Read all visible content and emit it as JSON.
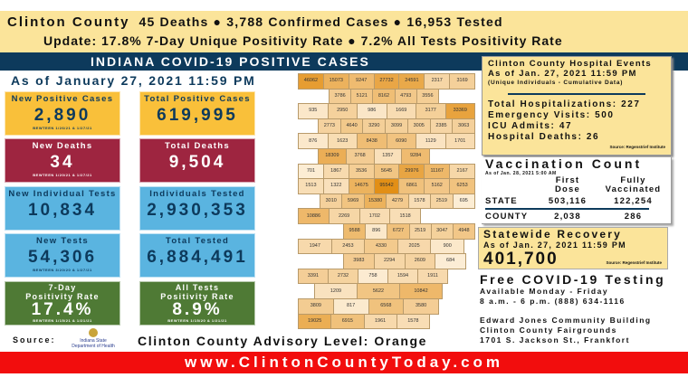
{
  "banner": {
    "county": "Clinton County",
    "line1": "45 Deaths  ● 3,788 Confirmed Cases    ● 16,953 Tested",
    "line2": "Update: 17.8% 7-Day Unique Positivity Rate ● 7.2% All Tests Positivity Rate"
  },
  "title": "INDIANA COVID-19 POSITIVE CASES",
  "as_of": "As of January 27, 2021 11:59 PM",
  "tiles": [
    {
      "title": "New Positive Cases",
      "value": "2,890",
      "sub": "BEWTEEN 1/26/21 & 1/27/21"
    },
    {
      "title": "Total Positive Cases",
      "value": "619,995"
    },
    {
      "title": "New Deaths",
      "value": "34",
      "sub": "BEWTEEN 1/20/21 & 1/27/21"
    },
    {
      "title": "Total Deaths",
      "value": "9,504"
    },
    {
      "title": "New Individual Tests",
      "value": "10,834"
    },
    {
      "title": "Individuals Tested",
      "value": "2,930,353"
    },
    {
      "title": "New Tests",
      "value": "54,306",
      "sub": "BEWTEEN 3/20/20 & 1/27/21"
    },
    {
      "title": "Total Tested",
      "value": "6,884,491"
    },
    {
      "title1": "7-Day",
      "title2": "Positivity Rate",
      "value": "17.4%",
      "sub": "BEWTEEN 1/15/21 & 1/21/21"
    },
    {
      "title1": "All Tests",
      "title2": "Positivity Rate",
      "value": "8.9%",
      "sub": "BEWTEEN 1/15/20 & 1/21/21"
    }
  ],
  "colors": {
    "yellow": "#f9c03a",
    "maroon": "#9e2540",
    "blue": "#5ab4e0",
    "green": "#4f7a35",
    "navy": "#0d3a5c",
    "banner": "#fbe49a",
    "red": "#f20d0d"
  },
  "source_label": "Source:",
  "source_logo": "Indiana State Department of Health",
  "advisory": "Clinton County Advisory Level: Orange",
  "website": "www.ClintonCountyToday.com",
  "map_counties": [
    [
      "46062",
      "15073",
      "9247",
      "27732",
      "24591",
      "2317",
      "3169"
    ],
    [
      "3786",
      "5121",
      "8162",
      "4793",
      "3556"
    ],
    [
      "935",
      "2950",
      "986",
      "1669",
      "3177",
      "33369"
    ],
    [
      "2773",
      "4640",
      "3290",
      "3099",
      "3005",
      "2385",
      "3063"
    ],
    [
      "876",
      "1623",
      "8438",
      "6090",
      "1129",
      "1701"
    ],
    [
      "18309",
      "3768",
      "1357",
      "9284"
    ],
    [
      "701",
      "1867",
      "3536",
      "5645",
      "29976",
      "11167",
      "2167"
    ],
    [
      "1513",
      "1322",
      "14675",
      "95542",
      "6861",
      "5162",
      "6253"
    ],
    [
      "3010",
      "5969",
      "15380",
      "4279",
      "1578",
      "2519",
      "695"
    ],
    [
      "10886",
      "2269",
      "1702",
      "1518"
    ],
    [
      "9588",
      "896",
      "6727",
      "2519",
      "3047",
      "4948"
    ],
    [
      "1947",
      "2453",
      "4330",
      "2025",
      "900"
    ],
    [
      "3983",
      "2294",
      "2609",
      "684"
    ],
    [
      "3391",
      "2732",
      "758",
      "1594",
      "1911"
    ],
    [
      "1209",
      "5622",
      "10842"
    ],
    [
      "3809",
      "817",
      "6568",
      "3580"
    ],
    [
      "19025",
      "6915",
      "1961",
      "1578"
    ]
  ],
  "hospital": {
    "title": "Clinton County Hospital Events",
    "as_of": "As of Jan. 27, 2021 11:59 PM",
    "note": "(Unique Individuals - Cumulative Data)",
    "stats": [
      "Total Hospitalizations: 227",
      "Emergency Visits: 500",
      "ICU Admits: 47",
      "Hospital Deaths: 26"
    ],
    "source": "Source: Regenstrief Institute"
  },
  "vaccination": {
    "title": "Vaccination Count",
    "as_of": "As of Jan. 28, 2021 5:00 AM",
    "col1a": "First",
    "col1b": "Dose",
    "col2a": "Fully",
    "col2b": "Vaccinated",
    "rows": [
      {
        "label": "STATE",
        "first": "503,116",
        "full": "122,254"
      },
      {
        "label": "COUNTY",
        "first": "2,038",
        "full": "286"
      }
    ]
  },
  "recovery": {
    "title": "Statewide Recovery",
    "as_of": "As of Jan. 27, 2021 11:59 PM",
    "value": "401,700",
    "source": "Source: Regenstrief Institute"
  },
  "testing": {
    "title": "Free COVID-19 Testing",
    "lines": [
      "Available Monday - Friday",
      "8 a.m. - 6 p.m.    (888) 634-1116"
    ],
    "address": [
      "Edward Jones Community Building",
      "Clinton County Fairgrounds",
      "1701 S. Jackson St., Frankfort"
    ]
  }
}
